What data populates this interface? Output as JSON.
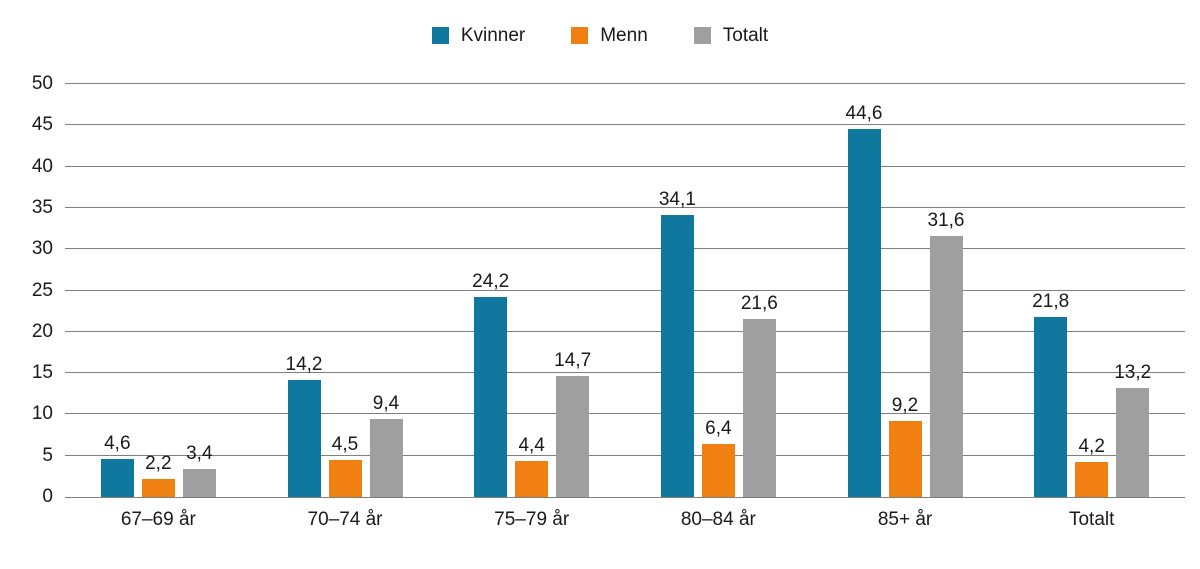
{
  "chart_data": {
    "type": "bar",
    "title": "",
    "xlabel": "",
    "ylabel": "",
    "categories": [
      "67–69 år",
      "70–74 år",
      "75–79 år",
      "80–84 år",
      "85+ år",
      "Totalt"
    ],
    "series": [
      {
        "name": "Kvinner",
        "color": "#10789f",
        "values": [
          4.6,
          14.2,
          24.2,
          34.1,
          44.6,
          21.8
        ],
        "labels": [
          "4,6",
          "14,2",
          "24,2",
          "34,1",
          "44,6",
          "21,8"
        ]
      },
      {
        "name": "Menn",
        "color": "#f08011",
        "values": [
          2.2,
          4.5,
          4.4,
          6.4,
          9.2,
          4.2
        ],
        "labels": [
          "2,2",
          "4,5",
          "4,4",
          "6,4",
          "9,2",
          "4,2"
        ]
      },
      {
        "name": "Totalt",
        "color": "#9f9f9f",
        "values": [
          3.4,
          9.4,
          14.7,
          21.6,
          31.6,
          13.2
        ],
        "labels": [
          "3,4",
          "9,4",
          "14,7",
          "21,6",
          "31,6",
          "13,2"
        ]
      }
    ],
    "ylim": [
      0,
      50
    ],
    "y_tick_step": 5,
    "y_ticks": [
      "0",
      "5",
      "10",
      "15",
      "20",
      "25",
      "30",
      "35",
      "40",
      "45",
      "50"
    ],
    "grid": true,
    "legend_position": "top",
    "decimal_separator": ",",
    "colors": {
      "grid": "#7f7f7f",
      "axis_baseline": "#7f7f7f",
      "text": "#1a1a1a",
      "background": "#ffffff"
    }
  }
}
